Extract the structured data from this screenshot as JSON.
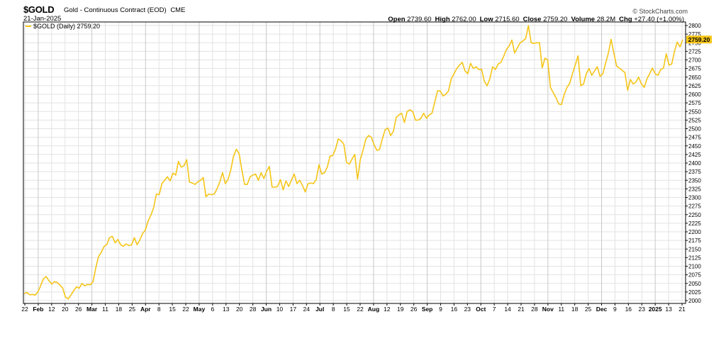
{
  "header": {
    "symbol": "$GOLD",
    "contract": "Gold - Continuous Contract (EOD)",
    "exchange": "CME",
    "date": "21-Jan-2025",
    "brand": "© StockCharts.com",
    "stats": [
      {
        "label": "Open",
        "value": "2739.60"
      },
      {
        "label": "High",
        "value": "2762.00"
      },
      {
        "label": "Low",
        "value": "2715.60"
      },
      {
        "label": "Close",
        "value": "2759.20"
      },
      {
        "label": "Volume",
        "value": "28.2M"
      },
      {
        "label": "Chg",
        "value": "+27.40 (+1.00%)"
      }
    ]
  },
  "colors": {
    "line": "#f5c518",
    "grid": "#e2e2e2",
    "axis": "#000000",
    "price_box": "#f5c518"
  },
  "chart_data": {
    "type": "line",
    "legend": "$GOLD (Daily) 2759.20",
    "legend_position": "top-left",
    "last_value_label": "2759.20",
    "last_value": 2759.2,
    "ylim": [
      2000,
      2800
    ],
    "y_ticks": [
      2000,
      2025,
      2050,
      2075,
      2100,
      2125,
      2150,
      2175,
      2200,
      2225,
      2250,
      2275,
      2300,
      2325,
      2350,
      2375,
      2400,
      2425,
      2450,
      2475,
      2500,
      2525,
      2550,
      2575,
      2600,
      2625,
      2650,
      2675,
      2700,
      2725,
      2750,
      2775,
      2800
    ],
    "y_axis_side": "right",
    "grid": true,
    "x_ticks": [
      {
        "label": "22",
        "bold": false
      },
      {
        "label": "Feb",
        "bold": true
      },
      {
        "label": "12",
        "bold": false
      },
      {
        "label": "20",
        "bold": false
      },
      {
        "label": "26",
        "bold": false
      },
      {
        "label": "Mar",
        "bold": true
      },
      {
        "label": "11",
        "bold": false
      },
      {
        "label": "18",
        "bold": false
      },
      {
        "label": "25",
        "bold": false
      },
      {
        "label": "Apr",
        "bold": true
      },
      {
        "label": "8",
        "bold": false
      },
      {
        "label": "15",
        "bold": false
      },
      {
        "label": "22",
        "bold": false
      },
      {
        "label": "May",
        "bold": true
      },
      {
        "label": "6",
        "bold": false
      },
      {
        "label": "13",
        "bold": false
      },
      {
        "label": "20",
        "bold": false
      },
      {
        "label": "28",
        "bold": false
      },
      {
        "label": "Jun",
        "bold": true
      },
      {
        "label": "10",
        "bold": false
      },
      {
        "label": "17",
        "bold": false
      },
      {
        "label": "24",
        "bold": false
      },
      {
        "label": "Jul",
        "bold": true
      },
      {
        "label": "8",
        "bold": false
      },
      {
        "label": "15",
        "bold": false
      },
      {
        "label": "22",
        "bold": false
      },
      {
        "label": "Aug",
        "bold": true
      },
      {
        "label": "12",
        "bold": false
      },
      {
        "label": "19",
        "bold": false
      },
      {
        "label": "26",
        "bold": false
      },
      {
        "label": "Sep",
        "bold": true
      },
      {
        "label": "9",
        "bold": false
      },
      {
        "label": "16",
        "bold": false
      },
      {
        "label": "23",
        "bold": false
      },
      {
        "label": "Oct",
        "bold": true
      },
      {
        "label": "7",
        "bold": false
      },
      {
        "label": "14",
        "bold": false
      },
      {
        "label": "21",
        "bold": false
      },
      {
        "label": "28",
        "bold": false
      },
      {
        "label": "Nov",
        "bold": true
      },
      {
        "label": "11",
        "bold": false
      },
      {
        "label": "18",
        "bold": false
      },
      {
        "label": "25",
        "bold": false
      },
      {
        "label": "Dec",
        "bold": true
      },
      {
        "label": "9",
        "bold": false
      },
      {
        "label": "16",
        "bold": false
      },
      {
        "label": "23",
        "bold": false
      },
      {
        "label": "2025",
        "bold": true
      },
      {
        "label": "13",
        "bold": false
      },
      {
        "label": "21",
        "bold": false
      }
    ],
    "series": [
      {
        "values": [
          2020,
          2024,
          2017,
          2018,
          2016,
          2025,
          2043,
          2063,
          2070,
          2058,
          2048,
          2055,
          2053,
          2045,
          2037,
          2010,
          2005,
          2016,
          2029,
          2040,
          2036,
          2050,
          2043,
          2047,
          2046,
          2055,
          2095,
          2128,
          2140,
          2157,
          2163,
          2183,
          2187,
          2168,
          2178,
          2163,
          2158,
          2165,
          2160,
          2162,
          2183,
          2162,
          2177,
          2195,
          2205,
          2232,
          2248,
          2270,
          2310,
          2308,
          2340,
          2350,
          2360,
          2348,
          2371,
          2365,
          2405,
          2388,
          2392,
          2410,
          2345,
          2342,
          2338,
          2345,
          2350,
          2358,
          2302,
          2310,
          2308,
          2310,
          2325,
          2345,
          2372,
          2340,
          2352,
          2380,
          2420,
          2440,
          2428,
          2380,
          2338,
          2338,
          2360,
          2365,
          2368,
          2350,
          2372,
          2355,
          2376,
          2390,
          2330,
          2330,
          2332,
          2352,
          2322,
          2348,
          2332,
          2350,
          2368,
          2340,
          2350,
          2335,
          2316,
          2340,
          2342,
          2340,
          2352,
          2395,
          2368,
          2372,
          2388,
          2420,
          2422,
          2440,
          2470,
          2465,
          2455,
          2402,
          2397,
          2412,
          2425,
          2353,
          2410,
          2438,
          2470,
          2480,
          2475,
          2453,
          2437,
          2440,
          2470,
          2497,
          2502,
          2480,
          2492,
          2532,
          2540,
          2545,
          2518,
          2550,
          2555,
          2550,
          2525,
          2525,
          2530,
          2545,
          2530,
          2540,
          2545,
          2577,
          2610,
          2610,
          2595,
          2600,
          2610,
          2645,
          2660,
          2675,
          2685,
          2693,
          2668,
          2660,
          2690,
          2675,
          2680,
          2672,
          2673,
          2638,
          2625,
          2645,
          2680,
          2672,
          2688,
          2693,
          2710,
          2730,
          2740,
          2758,
          2720,
          2735,
          2750,
          2755,
          2762,
          2800,
          2750,
          2748,
          2750,
          2750,
          2677,
          2705,
          2700,
          2620,
          2605,
          2590,
          2572,
          2570,
          2600,
          2620,
          2632,
          2660,
          2685,
          2712,
          2625,
          2630,
          2660,
          2675,
          2655,
          2668,
          2680,
          2652,
          2660,
          2690,
          2720,
          2760,
          2720,
          2682,
          2676,
          2670,
          2663,
          2612,
          2643,
          2630,
          2635,
          2650,
          2630,
          2620,
          2645,
          2660,
          2676,
          2660,
          2655,
          2672,
          2676,
          2718,
          2685,
          2688,
          2725,
          2752,
          2738,
          2759
        ]
      }
    ]
  }
}
